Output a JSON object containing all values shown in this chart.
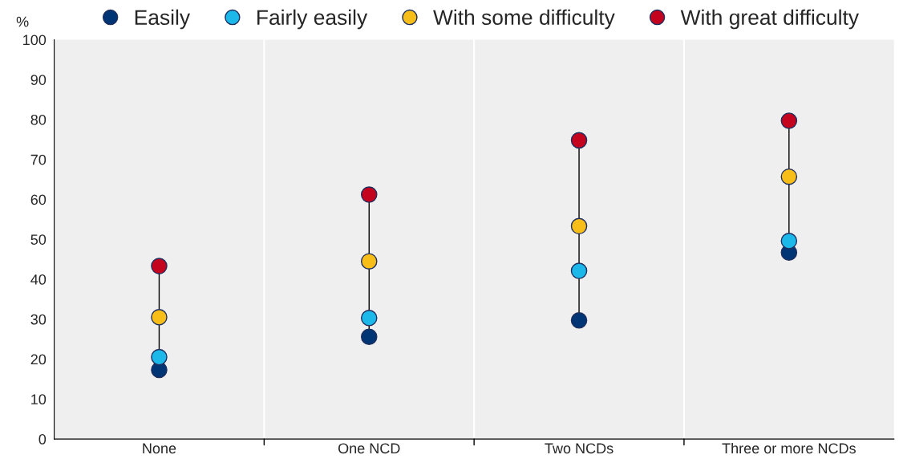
{
  "chart_data": {
    "type": "scatter",
    "ylabel": "%",
    "categories": [
      "None",
      "One NCD",
      "Two NCDs",
      "Three or more NCDs"
    ],
    "series": [
      {
        "name": "Easily",
        "color": "#003575",
        "values": [
          17.3,
          25.6,
          29.7,
          46.7
        ]
      },
      {
        "name": "Fairly easily",
        "color": "#1cb8ea",
        "values": [
          20.5,
          30.3,
          42.1,
          49.6
        ]
      },
      {
        "name": "With some difficulty",
        "color": "#f7bd19",
        "values": [
          30.5,
          44.5,
          53.3,
          65.7
        ]
      },
      {
        "name": "With great difficulty",
        "color": "#c4031e",
        "values": [
          43.3,
          61.2,
          74.8,
          79.7
        ]
      }
    ],
    "ylim": [
      0,
      100
    ],
    "yticks": [
      0,
      10,
      20,
      30,
      40,
      50,
      60,
      70,
      80,
      90,
      100
    ],
    "marker": "circle",
    "grid": false,
    "legend": "top"
  }
}
